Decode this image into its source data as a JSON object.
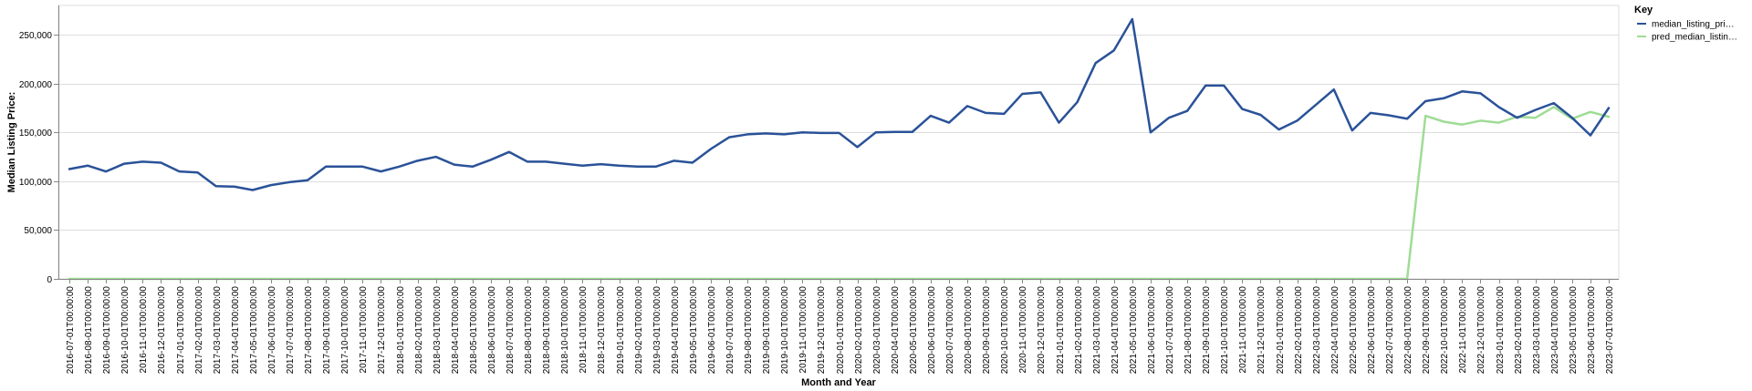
{
  "chart_data": {
    "type": "line",
    "title": "",
    "xlabel": "Month and Year",
    "ylabel": "Median Listing Price:",
    "ylim": [
      0,
      280000
    ],
    "yticks": [
      0,
      50000,
      100000,
      150000,
      200000,
      250000
    ],
    "ytick_labels": [
      "0",
      "50,000",
      "100,000",
      "150,000",
      "200,000",
      "250,000"
    ],
    "grid": true,
    "legend": {
      "title": "Key",
      "placement": "top-right",
      "labels": [
        "median_listing_pri…",
        "pred_median_listin…"
      ]
    },
    "x": [
      "2016-07-01T00:00:00",
      "2016-08-01T00:00:00",
      "2016-09-01T00:00:00",
      "2016-10-01T00:00:00",
      "2016-11-01T00:00:00",
      "2016-12-01T00:00:00",
      "2017-01-01T00:00:00",
      "2017-02-01T00:00:00",
      "2017-03-01T00:00:00",
      "2017-04-01T00:00:00",
      "2017-05-01T00:00:00",
      "2017-06-01T00:00:00",
      "2017-07-01T00:00:00",
      "2017-08-01T00:00:00",
      "2017-09-01T00:00:00",
      "2017-10-01T00:00:00",
      "2017-11-01T00:00:00",
      "2017-12-01T00:00:00",
      "2018-01-01T00:00:00",
      "2018-02-01T00:00:00",
      "2018-03-01T00:00:00",
      "2018-04-01T00:00:00",
      "2018-05-01T00:00:00",
      "2018-06-01T00:00:00",
      "2018-07-01T00:00:00",
      "2018-08-01T00:00:00",
      "2018-09-01T00:00:00",
      "2018-10-01T00:00:00",
      "2018-11-01T00:00:00",
      "2018-12-01T00:00:00",
      "2019-01-01T00:00:00",
      "2019-02-01T00:00:00",
      "2019-03-01T00:00:00",
      "2019-04-01T00:00:00",
      "2019-05-01T00:00:00",
      "2019-06-01T00:00:00",
      "2019-07-01T00:00:00",
      "2019-08-01T00:00:00",
      "2019-09-01T00:00:00",
      "2019-10-01T00:00:00",
      "2019-11-01T00:00:00",
      "2019-12-01T00:00:00",
      "2020-01-01T00:00:00",
      "2020-02-01T00:00:00",
      "2020-03-01T00:00:00",
      "2020-04-01T00:00:00",
      "2020-05-01T00:00:00",
      "2020-06-01T00:00:00",
      "2020-07-01T00:00:00",
      "2020-08-01T00:00:00",
      "2020-09-01T00:00:00",
      "2020-10-01T00:00:00",
      "2020-11-01T00:00:00",
      "2020-12-01T00:00:00",
      "2021-01-01T00:00:00",
      "2021-02-01T00:00:00",
      "2021-03-01T00:00:00",
      "2021-04-01T00:00:00",
      "2021-05-01T00:00:00",
      "2021-06-01T00:00:00",
      "2021-07-01T00:00:00",
      "2021-08-01T00:00:00",
      "2021-09-01T00:00:00",
      "2021-10-01T00:00:00",
      "2021-11-01T00:00:00",
      "2021-12-01T00:00:00",
      "2022-01-01T00:00:00",
      "2022-02-01T00:00:00",
      "2022-03-01T00:00:00",
      "2022-04-01T00:00:00",
      "2022-05-01T00:00:00",
      "2022-06-01T00:00:00",
      "2022-07-01T00:00:00",
      "2022-08-01T00:00:00",
      "2022-09-01T00:00:00",
      "2022-10-01T00:00:00",
      "2022-11-01T00:00:00",
      "2022-12-01T00:00:00",
      "2023-01-01T00:00:00",
      "2023-02-01T00:00:00",
      "2023-03-01T00:00:00",
      "2023-04-01T00:00:00",
      "2023-05-01T00:00:00",
      "2023-06-01T00:00:00",
      "2023-07-01T00:00:00"
    ],
    "series": [
      {
        "name": "median_listing_pri…",
        "color": "#2a5298",
        "values": [
          112500,
          116000,
          110000,
          118000,
          120000,
          119000,
          110000,
          109000,
          95000,
          94500,
          91000,
          96000,
          99000,
          101000,
          115000,
          115000,
          115000,
          110000,
          115000,
          121000,
          125000,
          117000,
          115000,
          122000,
          130000,
          120000,
          120000,
          118000,
          116000,
          117500,
          116000,
          115000,
          115000,
          121000,
          119000,
          133000,
          145000,
          148000,
          149000,
          148000,
          150000,
          149500,
          149500,
          135000,
          150000,
          150500,
          150500,
          167000,
          160000,
          177000,
          170000,
          169000,
          189500,
          191000,
          160000,
          181000,
          221000,
          234000,
          266000,
          150000,
          165000,
          172000,
          198000,
          198000,
          174000,
          168000,
          153000,
          162000,
          178000,
          194000,
          152000,
          170000,
          167500,
          164000,
          182000,
          185000,
          192000,
          190000,
          176000,
          165000,
          173000,
          180000,
          165000,
          147000,
          175000
        ]
      },
      {
        "name": "pred_median_listin…",
        "color": "#9fdc95",
        "values": [
          0,
          0,
          0,
          0,
          0,
          0,
          0,
          0,
          0,
          0,
          0,
          0,
          0,
          0,
          0,
          0,
          0,
          0,
          0,
          0,
          0,
          0,
          0,
          0,
          0,
          0,
          0,
          0,
          0,
          0,
          0,
          0,
          0,
          0,
          0,
          0,
          0,
          0,
          0,
          0,
          0,
          0,
          0,
          0,
          0,
          0,
          0,
          0,
          0,
          0,
          0,
          0,
          0,
          0,
          0,
          0,
          0,
          0,
          0,
          0,
          0,
          0,
          0,
          0,
          0,
          0,
          0,
          0,
          0,
          0,
          0,
          0,
          0,
          0,
          167000,
          161000,
          158000,
          162000,
          160000,
          166000,
          165000,
          176000,
          164000,
          171000,
          166000
        ]
      }
    ]
  }
}
